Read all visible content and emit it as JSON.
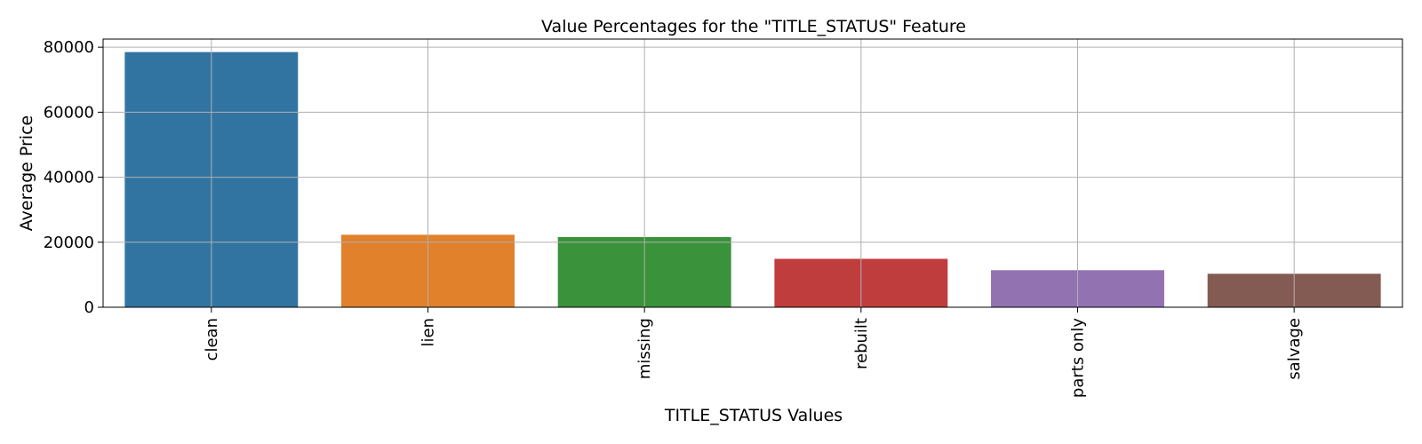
{
  "chart_data": {
    "type": "bar",
    "title": "Value Percentages for the \"TITLE_STATUS\" Feature",
    "xlabel": "TITLE_STATUS Values",
    "ylabel": "Average Price",
    "categories": [
      "clean",
      "lien",
      "missing",
      "rebuilt",
      "parts only",
      "salvage"
    ],
    "values": [
      78500,
      22300,
      21600,
      14900,
      11400,
      10300
    ],
    "colors": [
      "#3274a1",
      "#e1812c",
      "#3a923a",
      "#c03d3e",
      "#9372b2",
      "#845b53"
    ],
    "ylim": [
      0,
      82500
    ],
    "yticks": [
      0,
      20000,
      40000,
      60000,
      80000
    ],
    "ytick_labels": [
      "0",
      "20000",
      "40000",
      "60000",
      "80000"
    ],
    "grid": true,
    "x_tick_rotation": "vertical"
  }
}
